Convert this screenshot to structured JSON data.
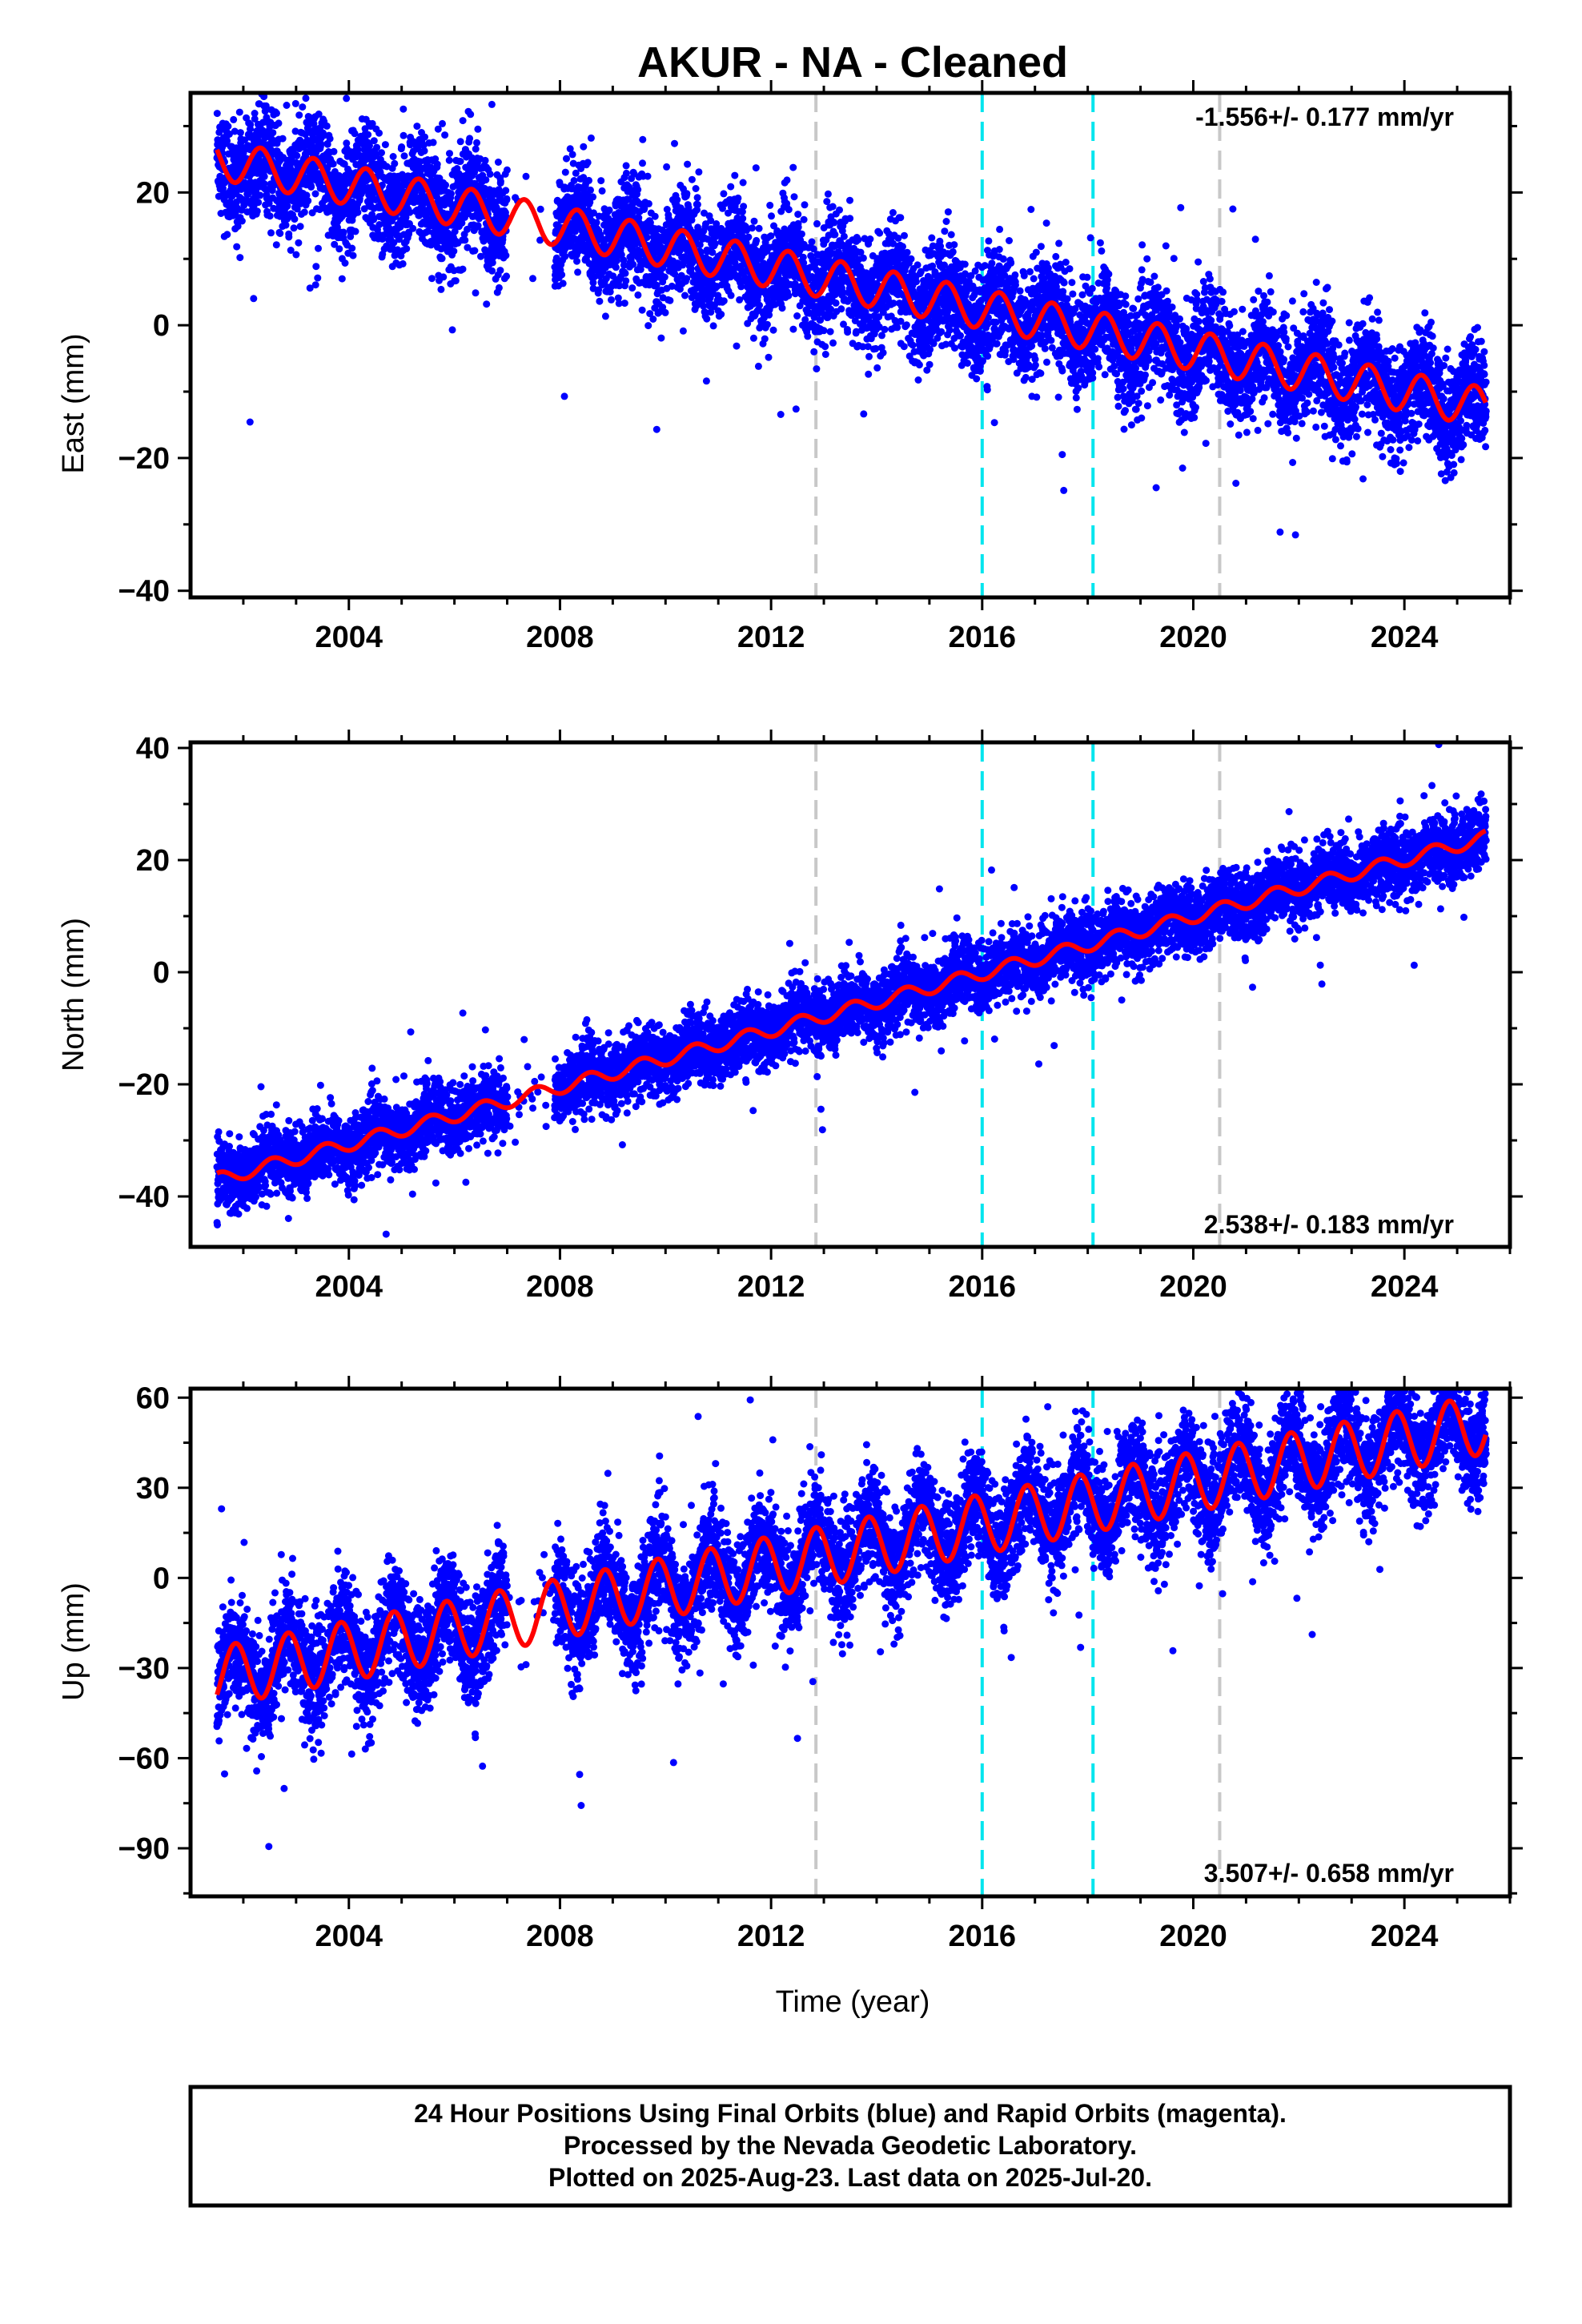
{
  "title": "AKUR  - NA - Cleaned",
  "colors": {
    "points": "#0000ff",
    "model": "#ff0000",
    "equipment_change": "#c8c8c8",
    "event": "#00e5ee"
  },
  "chart_data": [
    {
      "type": "scatter",
      "ylabel": "East (mm)",
      "xlabel": "",
      "rate_label": "-1.556+/- 0.177 mm/yr",
      "xlim": [
        2001,
        2026
      ],
      "ylim": [
        -41,
        35
      ],
      "x_ticks": [
        2004,
        2008,
        2012,
        2016,
        2020,
        2024
      ],
      "y_ticks": [
        -40,
        -20,
        0,
        20
      ],
      "gray_lines": [
        2012.85,
        2020.5
      ],
      "cyan_lines": [
        2016.0,
        2018.1
      ],
      "series": [
        {
          "role": "model",
          "offset": 25,
          "rate": -1.556,
          "amplitude": 3,
          "phase_days": 0.08
        },
        {
          "role": "points",
          "spread": 4.0,
          "start": 2001.5,
          "end": 2025.55,
          "gaps": [
            [
              2007.0,
              2007.9
            ]
          ]
        }
      ]
    },
    {
      "type": "scatter",
      "ylabel": "North (mm)",
      "xlabel": "",
      "rate_label": "2.538+/- 0.183 mm/yr",
      "xlim": [
        2001,
        2026
      ],
      "ylim": [
        -49,
        41
      ],
      "x_ticks": [
        2004,
        2008,
        2012,
        2016,
        2020,
        2024
      ],
      "y_ticks": [
        -40,
        -20,
        0,
        20,
        40
      ],
      "gray_lines": [
        2012.85,
        2020.5
      ],
      "cyan_lines": [
        2016.0,
        2018.1
      ],
      "series": [
        {
          "role": "model",
          "offset": -37,
          "rate": 2.538,
          "amplitude": 1.2,
          "phase_days": 0.3
        },
        {
          "role": "points",
          "spread": 3.0,
          "start": 2001.5,
          "end": 2025.55,
          "gaps": [
            [
              2007.0,
              2007.9
            ]
          ]
        }
      ]
    },
    {
      "type": "scatter",
      "ylabel": "Up (mm)",
      "xlabel": "Time (year)",
      "rate_label": "3.507+/- 0.658 mm/yr",
      "xlim": [
        2001,
        2026
      ],
      "ylim": [
        -106,
        63
      ],
      "x_ticks": [
        2004,
        2008,
        2012,
        2016,
        2020,
        2024
      ],
      "y_ticks": [
        -90,
        -60,
        -30,
        0,
        30,
        60
      ],
      "gray_lines": [
        2012.85,
        2020.5
      ],
      "cyan_lines": [
        2016.0,
        2018.1
      ],
      "series": [
        {
          "role": "model",
          "offset": -33,
          "rate": 3.507,
          "amplitude": 10,
          "phase_days": 0.6
        },
        {
          "role": "points",
          "spread": 9.0,
          "start": 2001.5,
          "end": 2025.55,
          "gaps": [
            [
              2007.0,
              2007.9
            ]
          ]
        }
      ]
    }
  ],
  "footer": {
    "line1": "24 Hour Positions Using Final Orbits (blue) and Rapid Orbits (magenta).",
    "line2": "Processed by the Nevada Geodetic Laboratory.",
    "line3": "Plotted on 2025-Aug-23. Last data on 2025-Jul-20."
  }
}
